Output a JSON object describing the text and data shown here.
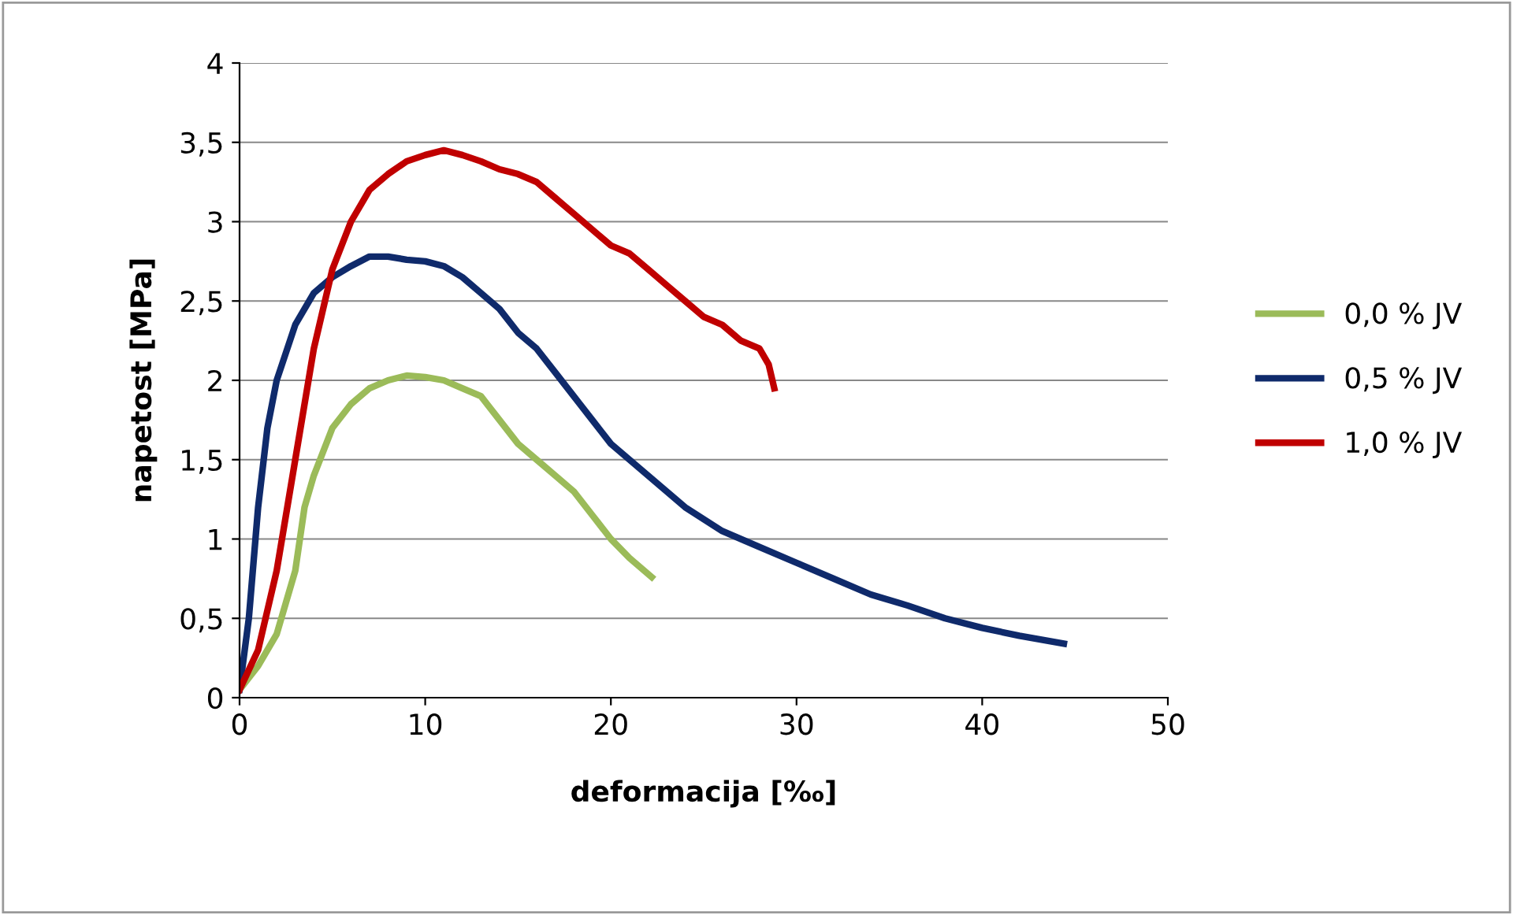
{
  "chart_data": {
    "type": "line",
    "xlabel": "deformacija [‰]",
    "ylabel": "napetost [MPa]",
    "xlim": [
      0,
      50
    ],
    "xticks": [
      0,
      10,
      20,
      30,
      40,
      50
    ],
    "ylim": [
      0,
      4
    ],
    "yticks": [
      0,
      {
        "value": 0.5,
        "label": "0,5"
      },
      1,
      {
        "value": 1.5,
        "label": "1,5"
      },
      2,
      {
        "value": 2.5,
        "label": "2,5"
      },
      3,
      {
        "value": 3.5,
        "label": "3,5"
      },
      4
    ],
    "grid": "y",
    "legend": "right",
    "marker": "none",
    "line_style": "solid",
    "series": [
      {
        "name": "0,0 % JV",
        "color": "#9bbb59",
        "x": [
          0,
          1,
          2,
          3,
          3.5,
          4,
          5,
          6,
          7,
          8,
          9,
          10,
          11,
          12,
          13,
          14,
          15,
          16,
          17,
          18,
          19,
          20,
          21,
          22.2
        ],
        "values": [
          0.05,
          0.2,
          0.4,
          0.8,
          1.2,
          1.4,
          1.7,
          1.85,
          1.95,
          2.0,
          2.03,
          2.02,
          2.0,
          1.95,
          1.9,
          1.75,
          1.6,
          1.5,
          1.4,
          1.3,
          1.15,
          1.0,
          0.88,
          0.76
        ]
      },
      {
        "name": "0,5 % JV",
        "color": "#0f2a6b",
        "x": [
          0,
          0.5,
          1,
          1.5,
          2,
          3,
          4,
          5,
          6,
          7,
          8,
          9,
          10,
          11,
          12,
          13,
          14,
          15,
          16,
          17,
          18,
          19,
          20,
          22,
          24,
          26,
          28,
          30,
          32,
          34,
          36,
          38,
          40,
          42,
          44.4
        ],
        "values": [
          0.05,
          0.5,
          1.2,
          1.7,
          2.0,
          2.35,
          2.55,
          2.65,
          2.72,
          2.78,
          2.78,
          2.76,
          2.75,
          2.72,
          2.65,
          2.55,
          2.45,
          2.3,
          2.2,
          2.05,
          1.9,
          1.75,
          1.6,
          1.4,
          1.2,
          1.05,
          0.95,
          0.85,
          0.75,
          0.65,
          0.58,
          0.5,
          0.44,
          0.39,
          0.34
        ]
      },
      {
        "name": "1,0 % JV",
        "color": "#c00000",
        "x": [
          0,
          1,
          2,
          3,
          4,
          5,
          6,
          7,
          8,
          9,
          10,
          11,
          12,
          13,
          14,
          15,
          16,
          17,
          18,
          19,
          20,
          21,
          22,
          23,
          24,
          25,
          26,
          27,
          28,
          28.5,
          28.8
        ],
        "values": [
          0.05,
          0.3,
          0.8,
          1.5,
          2.2,
          2.7,
          3.0,
          3.2,
          3.3,
          3.38,
          3.42,
          3.45,
          3.42,
          3.38,
          3.33,
          3.3,
          3.25,
          3.15,
          3.05,
          2.95,
          2.85,
          2.8,
          2.7,
          2.6,
          2.5,
          2.4,
          2.35,
          2.25,
          2.2,
          2.1,
          1.95
        ]
      }
    ]
  }
}
